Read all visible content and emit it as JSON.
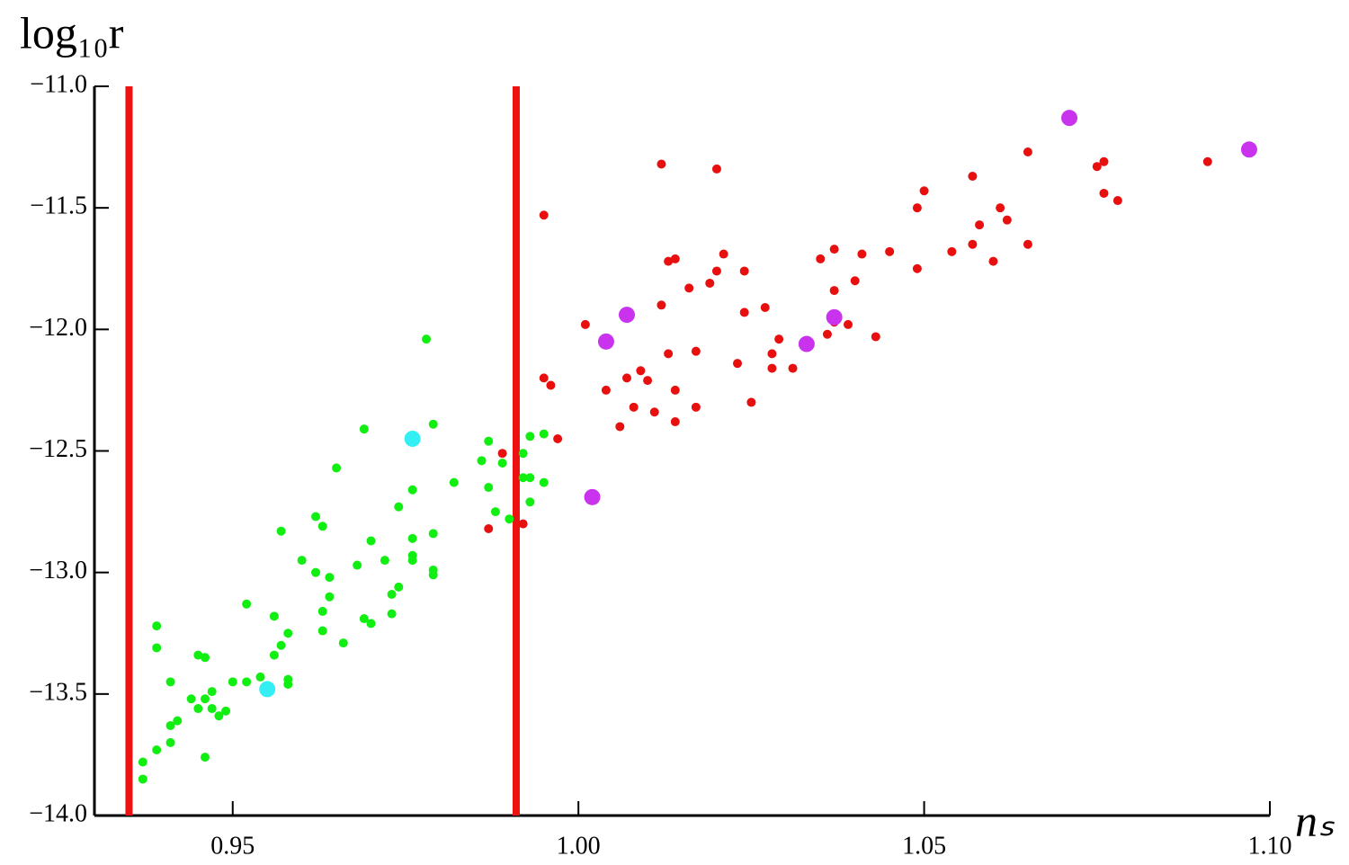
{
  "chart_data": {
    "type": "scatter",
    "ylabel": "log₁₀r",
    "xlabel": "nₛ",
    "xlim": [
      0.93,
      1.1
    ],
    "ylim": [
      -14,
      -11
    ],
    "xticks": [
      0.95,
      {
        "value": 1,
        "label": "1.00"
      },
      1.05,
      {
        "value": 1.1,
        "label": "1.10"
      }
    ],
    "yticks": [
      {
        "value": -14,
        "label": "−14.0"
      },
      {
        "value": -13.5,
        "label": "−13.5"
      },
      {
        "value": -13,
        "label": "−13.0"
      },
      {
        "value": -12.5,
        "label": "−12.5"
      },
      {
        "value": -12,
        "label": "−12.0"
      },
      {
        "value": -11.5,
        "label": "−11.5"
      },
      {
        "value": -11,
        "label": "−11.0"
      }
    ],
    "vlines": [
      0.935,
      0.991
    ],
    "vline_color": "#ee1111",
    "series": [
      {
        "color": "#e80f0f",
        "x": [
          0.995,
          1.012,
          1.02,
          1.091,
          1.075,
          1.076,
          1.076,
          1.078,
          1.065,
          1.057,
          1.05,
          1.049,
          1.061,
          1.062,
          1.058,
          1.057,
          1.054,
          1.06,
          1.065,
          1.049,
          1.045,
          1.041,
          1.037,
          1.035,
          1.04,
          1.037,
          1.037,
          1.039,
          1.036,
          1.043,
          1.029,
          1.024,
          1.027,
          1.024,
          1.021,
          1.02,
          1.019,
          1.016,
          1.013,
          1.014,
          1.012,
          1.013,
          1.017,
          1.009,
          1.01,
          1.007,
          1.004,
          1.001,
          1.023,
          1.028,
          1.031,
          1.028,
          1.008,
          1.011,
          1.014,
          1.014,
          1.017,
          1.025,
          1.006,
          0.995,
          0.996,
          0.997,
          0.989,
          0.992,
          0.987
        ],
        "y": [
          -11.53,
          -11.32,
          -11.34,
          -11.31,
          -11.33,
          -11.31,
          -11.44,
          -11.47,
          -11.27,
          -11.37,
          -11.43,
          -11.5,
          -11.5,
          -11.55,
          -11.57,
          -11.65,
          -11.68,
          -11.72,
          -11.65,
          -11.75,
          -11.68,
          -11.69,
          -11.67,
          -11.71,
          -11.8,
          -11.84,
          -11.97,
          -11.98,
          -12.02,
          -12.03,
          -12.04,
          -11.93,
          -11.91,
          -11.76,
          -11.69,
          -11.76,
          -11.81,
          -11.83,
          -11.72,
          -11.71,
          -11.9,
          -12.1,
          -12.09,
          -12.17,
          -12.21,
          -12.2,
          -12.25,
          -11.98,
          -12.14,
          -12.16,
          -12.16,
          -12.1,
          -12.32,
          -12.34,
          -12.25,
          -12.38,
          -12.32,
          -12.3,
          -12.4,
          -12.2,
          -12.23,
          -12.45,
          -12.51,
          -12.8,
          -12.82
        ]
      },
      {
        "color": "#11ee11",
        "x": [
          0.978,
          0.969,
          0.979,
          0.965,
          0.995,
          0.993,
          0.987,
          0.992,
          0.986,
          0.989,
          0.992,
          0.993,
          0.995,
          0.982,
          0.987,
          0.976,
          0.993,
          0.988,
          0.99,
          0.974,
          0.957,
          0.962,
          0.963,
          0.97,
          0.976,
          0.979,
          0.96,
          0.976,
          0.976,
          0.962,
          0.964,
          0.972,
          0.979,
          0.968,
          0.979,
          0.974,
          0.973,
          0.964,
          0.963,
          0.956,
          0.952,
          0.973,
          0.969,
          0.97,
          0.966,
          0.963,
          0.958,
          0.957,
          0.956,
          0.95,
          0.952,
          0.954,
          0.958,
          0.958,
          0.939,
          0.939,
          0.945,
          0.941,
          0.946,
          0.947,
          0.946,
          0.944,
          0.945,
          0.947,
          0.948,
          0.949,
          0.941,
          0.942,
          0.941,
          0.946,
          0.939,
          0.937,
          0.937
        ],
        "y": [
          -12.04,
          -12.41,
          -12.39,
          -12.57,
          -12.43,
          -12.44,
          -12.46,
          -12.51,
          -12.54,
          -12.55,
          -12.61,
          -12.61,
          -12.63,
          -12.63,
          -12.65,
          -12.66,
          -12.71,
          -12.75,
          -12.78,
          -12.73,
          -12.83,
          -12.77,
          -12.81,
          -12.87,
          -12.86,
          -12.84,
          -12.95,
          -12.93,
          -12.95,
          -13.0,
          -13.02,
          -12.95,
          -12.99,
          -12.97,
          -13.01,
          -13.06,
          -13.09,
          -13.1,
          -13.16,
          -13.18,
          -13.13,
          -13.17,
          -13.19,
          -13.21,
          -13.29,
          -13.24,
          -13.25,
          -13.3,
          -13.34,
          -13.45,
          -13.45,
          -13.43,
          -13.46,
          -13.44,
          -13.22,
          -13.31,
          -13.34,
          -13.45,
          -13.35,
          -13.49,
          -13.52,
          -13.52,
          -13.56,
          -13.56,
          -13.59,
          -13.57,
          -13.63,
          -13.61,
          -13.7,
          -13.76,
          -13.73,
          -13.78,
          -13.85
        ]
      },
      {
        "color": "#33eef2",
        "x": [
          0.976,
          0.955
        ],
        "y": [
          -12.45,
          -13.48
        ]
      },
      {
        "color": "#c933ee",
        "x": [
          1.071,
          1.097,
          1.007,
          1.004,
          1.037,
          1.033,
          1.002
        ],
        "y": [
          -11.13,
          -11.26,
          -11.94,
          -12.05,
          -11.95,
          -12.06,
          -12.69
        ]
      }
    ]
  }
}
